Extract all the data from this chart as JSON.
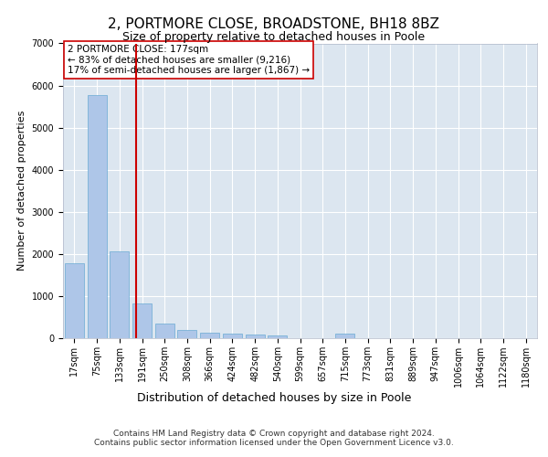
{
  "title1": "2, PORTMORE CLOSE, BROADSTONE, BH18 8BZ",
  "title2": "Size of property relative to detached houses in Poole",
  "xlabel": "Distribution of detached houses by size in Poole",
  "ylabel": "Number of detached properties",
  "bar_labels": [
    "17sqm",
    "75sqm",
    "133sqm",
    "191sqm",
    "250sqm",
    "308sqm",
    "366sqm",
    "424sqm",
    "482sqm",
    "540sqm",
    "599sqm",
    "657sqm",
    "715sqm",
    "773sqm",
    "831sqm",
    "889sqm",
    "947sqm",
    "1006sqm",
    "1064sqm",
    "1122sqm",
    "1180sqm"
  ],
  "bar_values": [
    1780,
    5780,
    2060,
    820,
    340,
    195,
    120,
    105,
    95,
    70,
    0,
    0,
    100,
    0,
    0,
    0,
    0,
    0,
    0,
    0,
    0
  ],
  "bar_color": "#aec6e8",
  "bar_edge_color": "#6aaad4",
  "vline_color": "#cc0000",
  "annotation_text": "2 PORTMORE CLOSE: 177sqm\n← 83% of detached houses are smaller (9,216)\n17% of semi-detached houses are larger (1,867) →",
  "annotation_box_color": "#ffffff",
  "annotation_box_edge": "#cc0000",
  "ylim": [
    0,
    7000
  ],
  "yticks": [
    0,
    1000,
    2000,
    3000,
    4000,
    5000,
    6000,
    7000
  ],
  "background_color": "#dce6f0",
  "grid_color": "#ffffff",
  "footnote": "Contains HM Land Registry data © Crown copyright and database right 2024.\nContains public sector information licensed under the Open Government Licence v3.0.",
  "title1_fontsize": 11,
  "title2_fontsize": 9,
  "xlabel_fontsize": 9,
  "ylabel_fontsize": 8,
  "tick_fontsize": 7,
  "annotation_fontsize": 7.5,
  "footnote_fontsize": 6.5
}
